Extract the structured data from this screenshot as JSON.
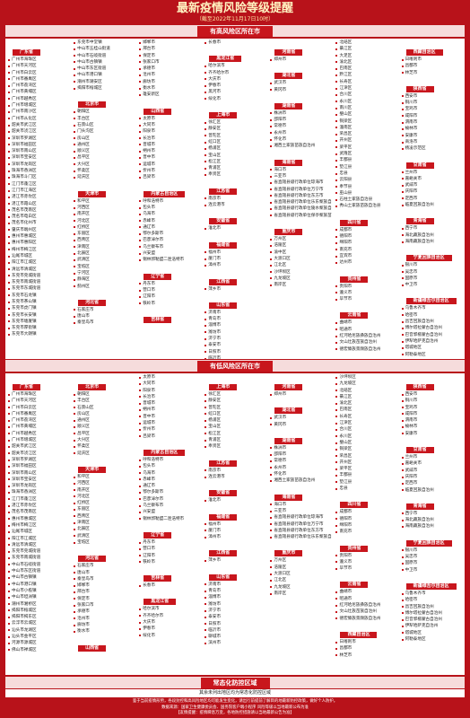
{
  "header": {
    "title": "最新疫情风险等级提醒",
    "subtitle": "（截至2022年11月17日10时）"
  },
  "sections": [
    {
      "title": "有高风险区所在市",
      "columns": [
        [
          {
            "province": "广东省",
            "cities": [
              "广州市海珠区",
              "广州市天河区",
              "广州市白云区",
              "广州市番禺区",
              "广州市荔湾区",
              "广州市黄埔区",
              "广州市越秀区",
              "广州市增城区",
              "广州市南沙区",
              "广州市从化区",
              "韶关市武江区",
              "韶关市浈江区",
              "深圳市罗湖区",
              "深圳市福田区",
              "深圳市南山区",
              "深圳市宝安区",
              "深圳市龙岗区",
              "珠海市香洲区",
              "珠海市斗门区",
              "江门市蓬江区",
              "江门市江海区",
              "湛江市赤坎区",
              "湛江市霞山区",
              "茂名市茂南区",
              "茂名市电白区",
              "茂名市化州市",
              "肇庆市端州区",
              "惠州市惠城区",
              "惠州市惠阳区",
              "梅州市梅江区",
              "汕尾市城区",
              "阳江市江城区",
              "清远市清城区",
              "东莞市莞城街道",
              "东莞市南城街道",
              "东莞市东城街道",
              "东莞市石龙镇",
              "东莞市茶山镇",
              "东莞市虎门镇",
              "东莞市长安镇",
              "东莞市塘厦镇",
              "东莞市厚街镇",
              "东莞市大朗镇"
            ]
          }
        ],
        [
          {
            "cities": [
              "东莞市中堂镇",
              "中山市五桂山街道",
              "中山市石岐街道",
              "中山市古镇镇",
              "中山市东区街道",
              "中山市港口镇",
              "潮州市潮安区",
              "揭阳市榕城区"
            ]
          },
          {
            "province": "北京市",
            "cities": [
              "朝阳区",
              "丰台区",
              "石景山区",
              "门头沟区",
              "房山区",
              "通州区",
              "顺义区",
              "昌平区",
              "大兴区",
              "怀柔区",
              "延庆区"
            ]
          },
          {
            "province": "天津市",
            "cities": [
              "和平区",
              "河西区",
              "南开区",
              "河北区",
              "红桥区",
              "东丽区",
              "西青区",
              "津南区",
              "北辰区",
              "武清区",
              "宝坻区",
              "宁河区",
              "静海区",
              "蓟州区"
            ]
          },
          {
            "province": "河北省",
            "cities": [
              "石家庄市",
              "唐山市",
              "秦皇岛市"
            ]
          }
        ],
        [
          {
            "cities": [
              "邯郸市",
              "邢台市",
              "保定市",
              "张家口市",
              "承德市",
              "沧州市",
              "廊坊市",
              "衡水市",
              "雄安新区"
            ]
          },
          {
            "province": "山西省",
            "cities": [
              "太原市",
              "大同市",
              "阳泉市",
              "长治市",
              "晋城市",
              "朔州市",
              "晋中市",
              "运城市",
              "忻州市",
              "吕梁市"
            ]
          },
          {
            "province": "内蒙古自治区",
            "cities": [
              "呼和浩特市",
              "包头市",
              "乌海市",
              "赤峰市",
              "通辽市",
              "鄂尔多斯市",
              "巴彦淖尔市",
              "乌兰察布市",
              "兴安盟",
              "锡林郭勒盟二连浩特市"
            ]
          },
          {
            "province": "辽宁省",
            "cities": [
              "丹东市",
              "营口市",
              "辽阳市",
              "铁岭市"
            ]
          },
          {
            "province": "吉林省",
            "cities": []
          }
        ],
        [
          {
            "cities": [
              "长春市"
            ]
          },
          {
            "province": "黑龙江省",
            "cities": [
              "哈尔滨市",
              "齐齐哈尔市",
              "大庆市",
              "伊春市",
              "黑河市",
              "绥化市"
            ]
          },
          {
            "province": "上海市",
            "cities": [
              "徐汇区",
              "静安区",
              "普陀区",
              "虹口区",
              "杨浦区",
              "宝山区",
              "松江区",
              "青浦区",
              "奉贤区"
            ]
          },
          {
            "province": "江苏省",
            "cities": [
              "南京市",
              "连云港市"
            ]
          },
          {
            "province": "安徽省",
            "cities": [
              "淮北市"
            ]
          },
          {
            "province": "福建省",
            "cities": [
              "福州市",
              "厦门市",
              "漳州市"
            ]
          },
          {
            "province": "江西省",
            "cities": [
              "萍乡市"
            ]
          },
          {
            "province": "山东省",
            "cities": [
              "济南市",
              "青岛市",
              "淄博市",
              "潍坊市",
              "济宁市",
              "泰安市",
              "日照市",
              "临沂市",
              "聊城市",
              "滨州市",
              "菏泽市"
            ]
          }
        ],
        [
          {
            "province": "河南省",
            "cities": [
              "郑州市"
            ]
          },
          {
            "province": "湖北省",
            "cities": [
              "武汉市",
              "黄冈市"
            ]
          },
          {
            "province": "湖南省",
            "cities": [
              "株洲市",
              "邵阳市",
              "常德市",
              "永州市",
              "怀化市",
              "湘西土家族苗族自治州"
            ]
          },
          {
            "province": "海南省",
            "cities": [
              "海口市",
              "三亚市",
              "省直辖县级行政单位琼海市",
              "省直辖县级行政单位万宁市",
              "省直辖县级行政单位东方市",
              "省直辖县级行政单位乐东黎族自治县",
              "省直辖县级行政单位陵水黎族自治县",
              "省直辖县级行政单位保亭黎族苗族自治县"
            ]
          },
          {
            "province": "重庆市",
            "cities": [
              "万州区",
              "涪陵区",
              "渝中区",
              "大渡口区",
              "江北区",
              "沙坪坝区",
              "九龙坡区",
              "南岸区"
            ]
          }
        ],
        [
          {
            "cities": [
              "北碚区",
              "綦江区",
              "大足区",
              "渝北区",
              "巴南区",
              "黔江区",
              "长寿区",
              "江津区",
              "合川区",
              "永川区",
              "南川区",
              "璧山区",
              "铜梁区",
              "潼南区",
              "荣昌区",
              "开州区",
              "梁平区",
              "武隆区",
              "丰都县",
              "垫江县",
              "忠县",
              "云阳县",
              "奉节县",
              "巫山县",
              "石柱土家族自治县",
              "秀山土家族苗族自治县"
            ]
          },
          {
            "province": "四川省",
            "cities": [
              "成都市",
              "德阳市",
              "绵阳市",
              "南充市",
              "宜宾市",
              "达州市"
            ]
          },
          {
            "province": "贵州省",
            "cities": [
              "贵阳市",
              "遵义市",
              "毕节市"
            ]
          },
          {
            "province": "云南省",
            "cities": [
              "曲靖市",
              "昭通市",
              "红河哈尼族彝族自治州",
              "文山壮族苗族自治州",
              "德宏傣族景颇族自治州"
            ]
          }
        ],
        [
          {
            "province": "西藏自治区",
            "cities": [
              "日喀则市",
              "昌都市",
              "林芝市"
            ]
          },
          {
            "province": "陕西省",
            "cities": [
              "西安市",
              "铜川市",
              "宝鸡市",
              "咸阳市",
              "渭南市",
              "榆林市",
              "安康市",
              "商洛市",
              "杨凌示范区"
            ]
          },
          {
            "province": "甘肃省",
            "cities": [
              "兰州市",
              "嘉峪关市",
              "武威市",
              "庆阳市",
              "定西市",
              "临夏回族自治州"
            ]
          },
          {
            "province": "青海省",
            "cities": [
              "西宁市",
              "海北藏族自治州",
              "海南藏族自治州"
            ]
          },
          {
            "province": "宁夏回族自治区",
            "cities": [
              "银川市",
              "吴忠市",
              "固原市",
              "中卫市"
            ]
          },
          {
            "province": "新疆维吾尔自治区",
            "cities": [
              "乌鲁木齐市",
              "哈密市",
              "昌吉回族自治州",
              "博尔塔拉蒙古自治州",
              "巴音郭楞蒙古自治州",
              "伊犁哈萨克自治州",
              "塔城地区",
              "阿勒泰地区"
            ]
          }
        ]
      ]
    },
    {
      "title": "有低风险区所在市",
      "columns": [
        [
          {
            "province": "广东省",
            "cities": [
              "广州市海珠区",
              "广州市天河区",
              "广州市白云区",
              "广州市番禺区",
              "广州市荔湾区",
              "广州市黄埔区",
              "广州市越秀区",
              "广州市增城区",
              "韶关市武江区",
              "韶关市浈江区",
              "深圳市罗湖区",
              "深圳市福田区",
              "深圳市南山区",
              "深圳市宝安区",
              "深圳市龙岗区",
              "珠海市香洲区",
              "江门市蓬江区",
              "湛江市赤坎区",
              "茂名市茂南区",
              "惠州市惠城区",
              "梅州市梅江区",
              "汕尾市城区",
              "阳江市江城区",
              "清远市清城区",
              "东莞市莞城街道",
              "东莞市南城街道",
              "中山市石岐街道",
              "中山市东区街道",
              "中山市古镇镇",
              "中山市港口镇",
              "中山市小榄镇",
              "中山市坦洲镇",
              "潮州市湘桥区",
              "揭阳市榕城区",
              "揭阳市揭东区",
              "云浮市云城区",
              "汕头市龙湖区",
              "汕头市金平区",
              "河源市源城区",
              "佛山市禅城区"
            ]
          }
        ],
        [
          {
            "province": "北京市",
            "cities": [
              "朝阳区",
              "丰台区",
              "石景山区",
              "房山区",
              "通州区",
              "顺义区",
              "昌平区",
              "大兴区",
              "怀柔区",
              "延庆区"
            ]
          },
          {
            "province": "天津市",
            "cities": [
              "和平区",
              "河西区",
              "南开区",
              "河北区",
              "红桥区",
              "东丽区",
              "西青区",
              "津南区",
              "北辰区",
              "武清区",
              "宝坻区"
            ]
          },
          {
            "province": "河北省",
            "cities": [
              "石家庄市",
              "唐山市",
              "秦皇岛市",
              "邯郸市",
              "邢台市",
              "保定市",
              "张家口市",
              "承德市",
              "沧州市",
              "廊坊市",
              "衡水市"
            ]
          },
          {
            "province": "山西省",
            "cities": []
          }
        ],
        [
          {
            "cities": [
              "太原市",
              "大同市",
              "阳泉市",
              "长治市",
              "晋城市",
              "朔州市",
              "晋中市",
              "运城市",
              "忻州市",
              "吕梁市"
            ]
          },
          {
            "province": "内蒙古自治区",
            "cities": [
              "呼和浩特市",
              "包头市",
              "乌海市",
              "赤峰市",
              "通辽市",
              "鄂尔多斯市",
              "巴彦淖尔市",
              "乌兰察布市",
              "兴安盟",
              "锡林郭勒盟二连浩特市"
            ]
          },
          {
            "province": "辽宁省",
            "cities": [
              "丹东市",
              "营口市",
              "辽阳市",
              "铁岭市"
            ]
          },
          {
            "province": "吉林省",
            "cities": [
              "长春市"
            ]
          },
          {
            "province": "黑龙江省",
            "cities": [
              "哈尔滨市",
              "齐齐哈尔市",
              "大庆市",
              "伊春市",
              "绥化市"
            ]
          }
        ],
        [
          {
            "province": "上海市",
            "cities": [
              "徐汇区",
              "静安区",
              "普陀区",
              "虹口区",
              "杨浦区",
              "宝山区",
              "松江区",
              "青浦区",
              "奉贤区"
            ]
          },
          {
            "province": "江苏省",
            "cities": [
              "南京市",
              "连云港市"
            ]
          },
          {
            "province": "安徽省",
            "cities": [
              "淮北市"
            ]
          },
          {
            "province": "福建省",
            "cities": [
              "福州市",
              "厦门市",
              "漳州市"
            ]
          },
          {
            "province": "江西省",
            "cities": [
              "萍乡市"
            ]
          },
          {
            "province": "山东省",
            "cities": [
              "济南市",
              "青岛市",
              "淄博市",
              "潍坊市",
              "济宁市",
              "泰安市",
              "日照市",
              "临沂市",
              "聊城市",
              "滨州市"
            ]
          }
        ],
        [
          {
            "province": "河南省",
            "cities": [
              "郑州市"
            ]
          },
          {
            "province": "湖北省",
            "cities": [
              "武汉市",
              "黄冈市"
            ]
          },
          {
            "province": "湖南省",
            "cities": [
              "株洲市",
              "邵阳市",
              "常德市",
              "永州市",
              "怀化市",
              "湘西土家族苗族自治州"
            ]
          },
          {
            "province": "海南省",
            "cities": [
              "海口市",
              "三亚市",
              "省直辖县级行政单位琼海市",
              "省直辖县级行政单位万宁市",
              "省直辖县级行政单位东方市",
              "省直辖县级行政单位乐东黎族自治县"
            ]
          },
          {
            "province": "重庆市",
            "cities": [
              "万州区",
              "涪陵区",
              "大渡口区",
              "江北区",
              "九龙坡区",
              "南岸区"
            ]
          }
        ],
        [
          {
            "cities": [
              "沙坪坝区",
              "九龙坡区",
              "北碚区",
              "綦江区",
              "渝北区",
              "巴南区",
              "长寿区",
              "江津区",
              "合川区",
              "永川区",
              "璧山区",
              "铜梁区",
              "荣昌区",
              "开州区",
              "梁平区",
              "丰都县",
              "垫江县",
              "忠县"
            ]
          },
          {
            "province": "四川省",
            "cities": [
              "成都市",
              "德阳市",
              "绵阳市",
              "南充市"
            ]
          },
          {
            "province": "贵州省",
            "cities": [
              "贵阳市",
              "遵义市",
              "毕节市"
            ]
          },
          {
            "province": "云南省",
            "cities": [
              "曲靖市",
              "昭通市",
              "红河哈尼族彝族自治州",
              "文山壮族苗族自治州",
              "德宏傣族景颇族自治州"
            ]
          },
          {
            "province": "西藏自治区",
            "cities": [
              "日喀则市",
              "昌都市",
              "林芝市"
            ]
          }
        ],
        [
          {
            "province": "陕西省",
            "cities": [
              "西安市",
              "铜川市",
              "宝鸡市",
              "咸阳市",
              "渭南市",
              "榆林市",
              "安康市"
            ]
          },
          {
            "province": "甘肃省",
            "cities": [
              "兰州市",
              "嘉峪关市",
              "武威市",
              "庆阳市",
              "定西市",
              "临夏回族自治州"
            ]
          },
          {
            "province": "青海省",
            "cities": [
              "西宁市",
              "海北藏族自治州",
              "海南藏族自治州"
            ]
          },
          {
            "province": "宁夏回族自治区",
            "cities": [
              "银川市",
              "吴忠市",
              "固原市",
              "中卫市"
            ]
          },
          {
            "province": "新疆维吾尔自治区",
            "cities": [
              "乌鲁木齐市",
              "哈密市",
              "昌吉回族自治州",
              "博尔塔拉蒙古自治州",
              "巴音郭楞蒙古自治州",
              "伊犁哈萨克自治州",
              "塔城地区",
              "阿勒泰地区"
            ]
          }
        ]
      ]
    }
  ],
  "normal": {
    "title": "常态化防控区域",
    "note": "其余未列出地区均为常态化防控区域"
  },
  "footer": [
    "鉴于当前疫情形势，各段封控和高风险地区均可能发生变化，请出行前提前了解目的地最新防控政策，做好个人防护。",
    "数据来源：国家卫生健康委员会、国务院客户端小程序 风险等级以当地最新公布为准",
    "【友情提醒：疫情瞬息万变，各地防控措施请以当地最新公告为准】"
  ]
}
